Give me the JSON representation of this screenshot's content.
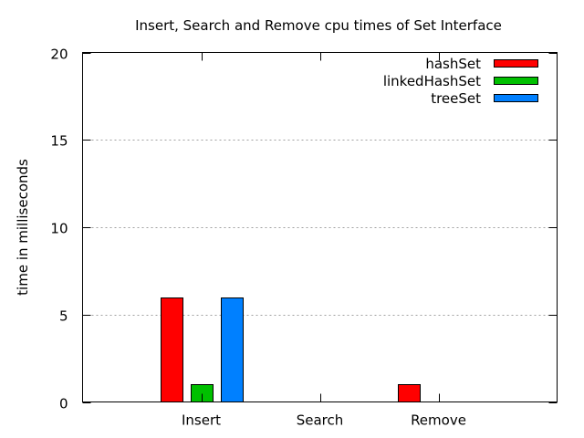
{
  "chart_data": {
    "type": "bar",
    "title": "Insert, Search and Remove cpu times of Set Interface",
    "xlabel": "",
    "ylabel": "time in milliseconds",
    "categories": [
      "Insert",
      "Search",
      "Remove"
    ],
    "series": [
      {
        "name": "hashSet",
        "values": [
          6,
          0,
          1
        ],
        "color": "#ff0000"
      },
      {
        "name": "linkedHashSet",
        "values": [
          1,
          0,
          0
        ],
        "color": "#00c000"
      },
      {
        "name": "treeSet",
        "values": [
          6,
          0,
          0
        ],
        "color": "#0080ff"
      }
    ],
    "ylim": [
      0,
      20
    ],
    "yticks": [
      "0",
      "5",
      "10",
      "15",
      "20"
    ],
    "grid": true,
    "legend_position": "top-right"
  }
}
